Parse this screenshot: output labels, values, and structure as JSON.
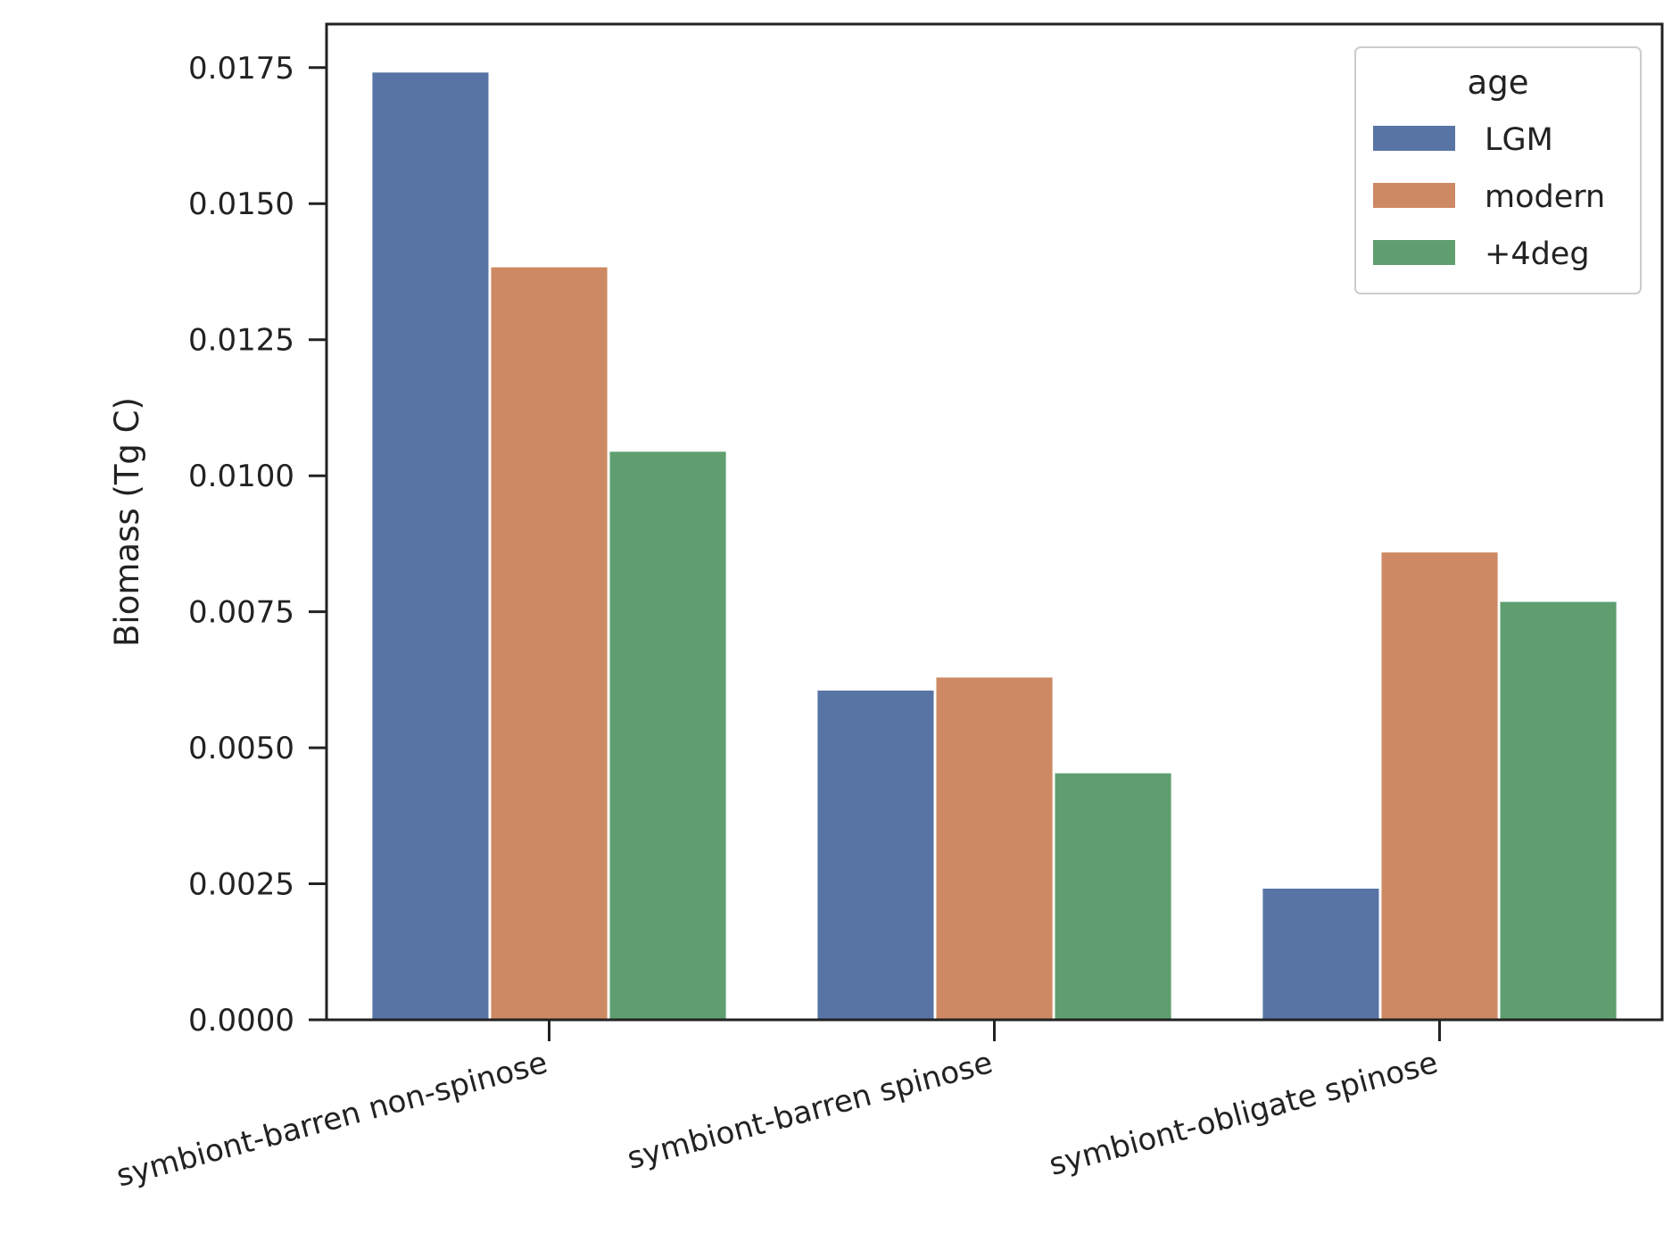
{
  "chart_data": {
    "type": "bar",
    "title": "",
    "xlabel": "",
    "ylabel": "Biomass (Tg C)",
    "ylim": [
      0,
      0.0183
    ],
    "yticks": [
      "0.0000",
      "0.0025",
      "0.0050",
      "0.0075",
      "0.0100",
      "0.0125",
      "0.0150",
      "0.0175"
    ],
    "categories": [
      "symbiont-barren non-spinose",
      "symbiont-barren spinose",
      "symbiont-obligate spinose"
    ],
    "grid": false,
    "legend": {
      "title": "age",
      "placement": "top-right"
    },
    "series": [
      {
        "name": "LGM",
        "color": "#5874a5",
        "values": [
          0.01741,
          0.00605,
          0.00241
        ]
      },
      {
        "name": "modern",
        "color": "#cd8963",
        "values": [
          0.01383,
          0.00629,
          0.00859
        ]
      },
      {
        "name": "+4deg",
        "color": "#5f9f6f",
        "values": [
          0.01044,
          0.00453,
          0.00768
        ]
      }
    ]
  }
}
